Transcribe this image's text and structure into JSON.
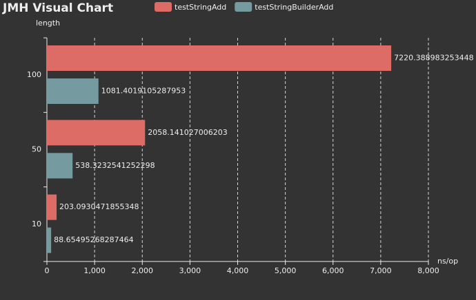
{
  "chart_data": {
    "type": "hbar",
    "title": "JMH Visual Chart",
    "y_label": "length",
    "x_label": "ns/op",
    "categories": [
      "10",
      "50",
      "100"
    ],
    "series": [
      {
        "name": "testStringAdd",
        "color": "#dd6b66",
        "values": [
          203.0930471855348,
          2058.141027006203,
          7220.388983253448
        ]
      },
      {
        "name": "testStringBuilderAdd",
        "color": "#759aa0",
        "values": [
          88.65495268287464,
          538.3232541252298,
          1081.4019105287953
        ]
      }
    ],
    "xlim": [
      0,
      8000
    ],
    "xticks": [
      0,
      {
        "value": 1000,
        "label": "1,000"
      },
      {
        "value": 2000,
        "label": "2,000"
      },
      {
        "value": 3000,
        "label": "3,000"
      },
      {
        "value": 4000,
        "label": "4,000"
      },
      {
        "value": 5000,
        "label": "5,000"
      },
      {
        "value": 6000,
        "label": "6,000"
      },
      {
        "value": 7000,
        "label": "7,000"
      },
      {
        "value": 8000,
        "label": "8,000"
      }
    ],
    "grid": true
  }
}
